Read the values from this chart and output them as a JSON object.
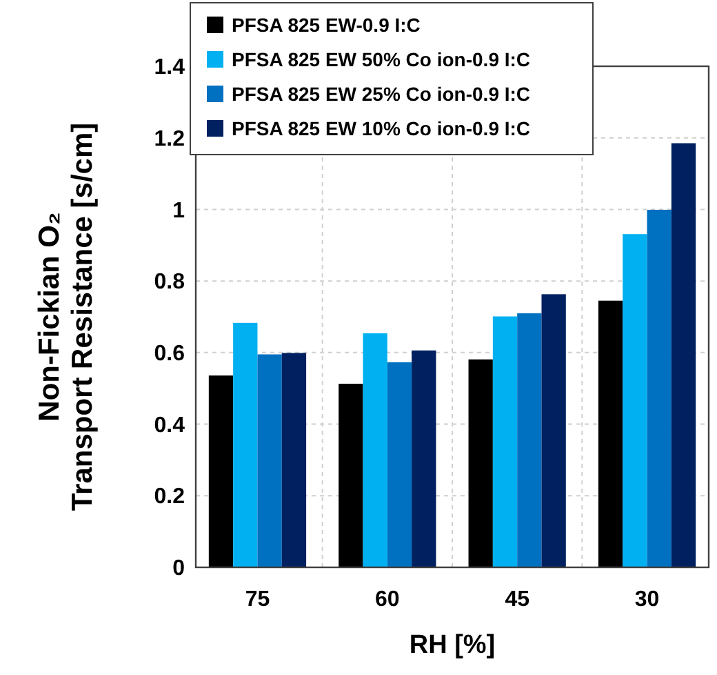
{
  "chart_data": {
    "type": "bar",
    "xlabel": "RH [%]",
    "ylabel": "Non-Fickian O₂\nTransport Resistance [s/cm]",
    "categories": [
      "75",
      "60",
      "45",
      "30"
    ],
    "series": [
      {
        "name": "PFSA 825 EW-0.9 I:C",
        "color": "#000000",
        "values": [
          0.536,
          0.513,
          0.581,
          0.745
        ]
      },
      {
        "name": "PFSA 825 EW 50% Co ion-0.9 I:C",
        "color": "#00b0f0",
        "values": [
          0.683,
          0.654,
          0.701,
          0.931
        ]
      },
      {
        "name": "PFSA 825 EW 25% Co ion-0.9 I:C",
        "color": "#0070c0",
        "values": [
          0.595,
          0.573,
          0.71,
          0.999
        ]
      },
      {
        "name": "PFSA 825 EW 10% Co ion-0.9 I:C",
        "color": "#002060",
        "values": [
          0.599,
          0.606,
          0.763,
          1.185
        ]
      }
    ],
    "ylim": [
      0,
      1.4
    ],
    "yticks": [
      0,
      0.2,
      0.4,
      0.6,
      0.8,
      1,
      1.2,
      1.4
    ],
    "grid": true,
    "legend": "top left"
  }
}
